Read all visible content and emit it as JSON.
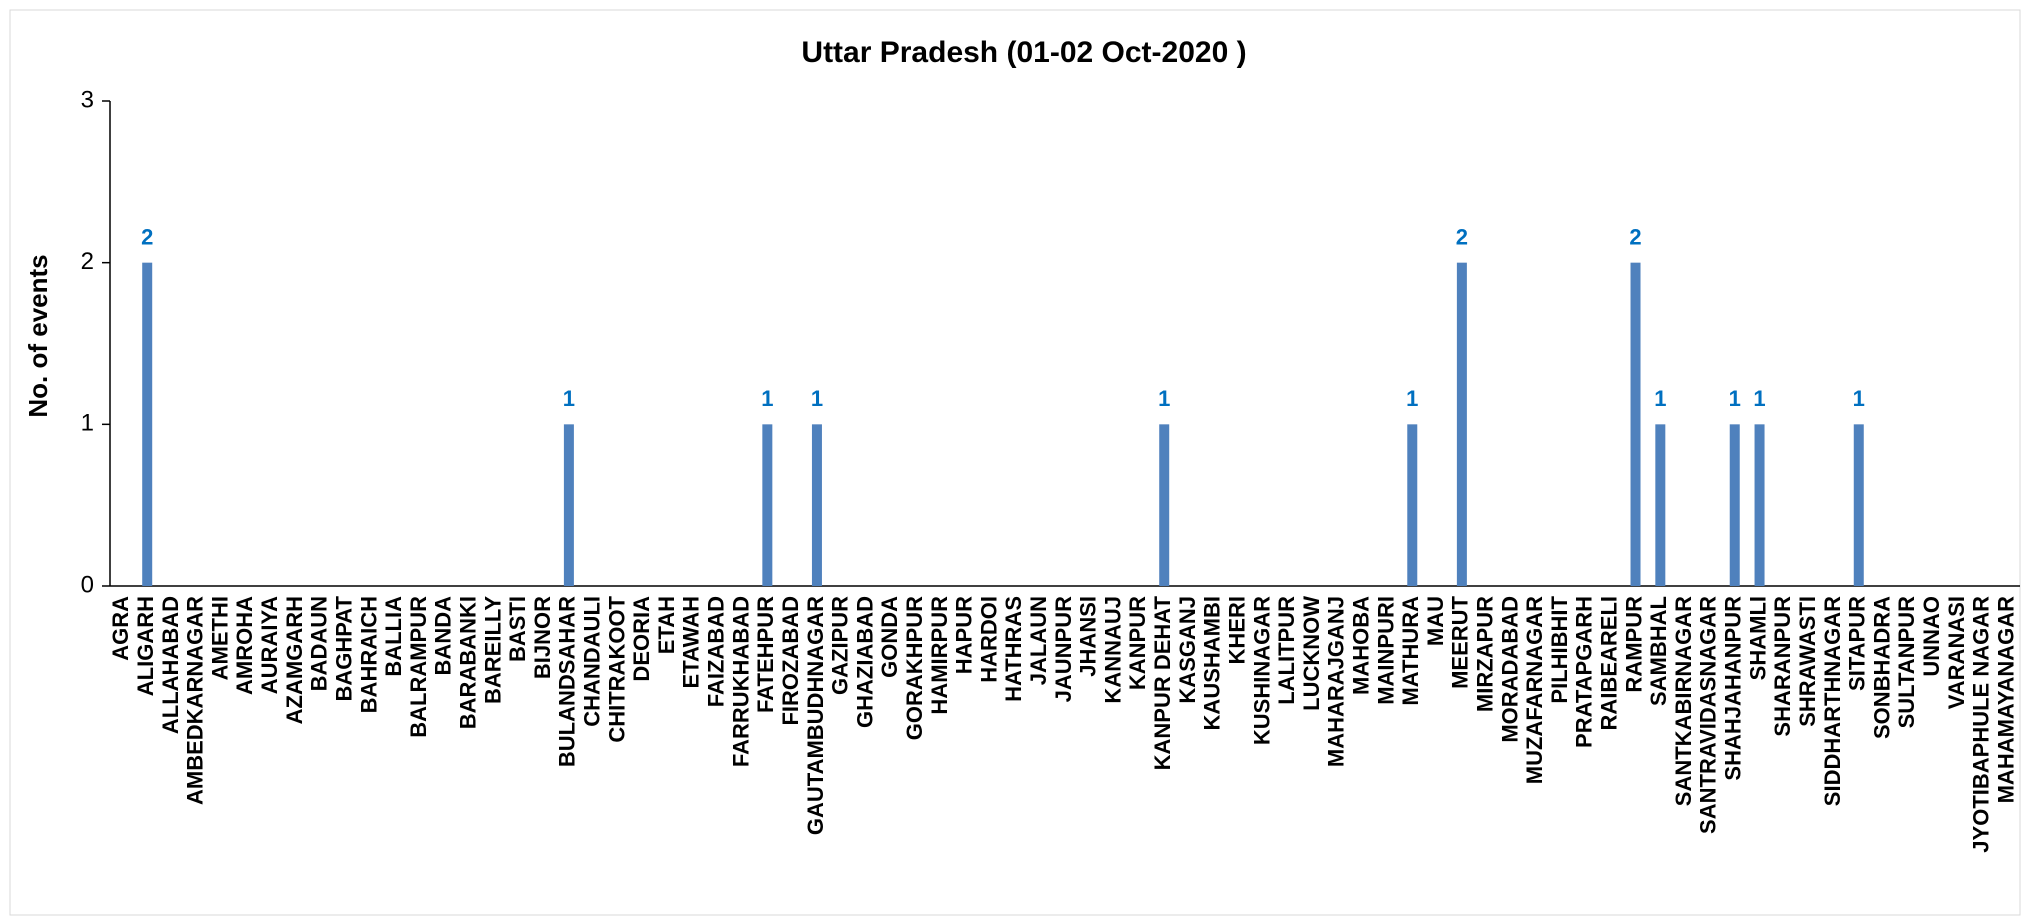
{
  "chart_data": {
    "type": "bar",
    "title": "Uttar Pradesh  (01-02 Oct-2020 )",
    "y_label": "No. of events",
    "categories": [
      "AGRA",
      "ALIGARH",
      "ALLAHABAD",
      "AMBEDKARNAGAR",
      "AMETHI",
      "AMROHA",
      "AURAIYA",
      "AZAMGARH",
      "BADAUN",
      "BAGHPAT",
      "BAHRAICH",
      "BALLIA",
      "BALRAMPUR",
      "BANDA",
      "BARABANKI",
      "BAREILLY",
      "BASTI",
      "BIJNOR",
      "BULANDSAHAR",
      "CHANDAULI",
      "CHITRAKOOT",
      "DEORIA",
      "ETAH",
      "ETAWAH",
      "FAIZABAD",
      "FARRUKHABAD",
      "FATEHPUR",
      "FIROZABAD",
      "GAUTAMBUDHNAGAR",
      "GAZIPUR",
      "GHAZIABAD",
      "GONDA",
      "GORAKHPUR",
      "HAMIRPUR",
      "HAPUR",
      "HARDOI",
      "HATHRAS",
      "JALAUN",
      "JAUNPUR",
      "JHANSI",
      "KANNAUJ",
      "KANPUR",
      "KANPUR DEHAT",
      "KASGANJ",
      "KAUSHAMBI",
      "KHERI",
      "KUSHINAGAR",
      "LALITPUR",
      "LUCKNOW",
      "MAHARAJGANJ",
      "MAHOBA",
      "MAINPURI",
      "MATHURA",
      "MAU",
      "MEERUT",
      "MIRZAPUR",
      "MORADABAD",
      "MUZAFARNAGAR",
      "PILHIBHIT",
      "PRATAPGARH",
      "RAIBEARELI",
      "RAMPUR",
      "SAMBHAL",
      "SANTKABIRNAGAR",
      "SANTRAVIDASNAGAR",
      "SHAHJAHANPUR",
      "SHAMLI",
      "SHARANPUR",
      "SHRAWASTI",
      "SIDDHARTHNAGAR",
      "SITAPUR",
      "SONBHADRA",
      "SULTANPUR",
      "UNNAO",
      "VARANASI",
      "JYOTIBAPHULE NAGAR",
      "MAHAMAYANAGAR"
    ],
    "values": [
      0,
      2,
      0,
      0,
      0,
      0,
      0,
      0,
      0,
      0,
      0,
      0,
      0,
      0,
      0,
      0,
      0,
      0,
      1,
      0,
      0,
      0,
      0,
      0,
      0,
      0,
      1,
      0,
      1,
      0,
      0,
      0,
      0,
      0,
      0,
      0,
      0,
      0,
      0,
      0,
      0,
      0,
      1,
      0,
      0,
      0,
      0,
      0,
      0,
      0,
      0,
      0,
      1,
      0,
      2,
      0,
      0,
      0,
      0,
      0,
      0,
      2,
      1,
      0,
      0,
      1,
      1,
      0,
      0,
      0,
      1,
      0,
      0,
      0,
      0,
      0,
      0
    ],
    "color": "#4f81bd",
    "label_color": "#0070c0",
    "ylim": [
      0,
      3
    ],
    "yticks": [
      0,
      1,
      2,
      3
    ]
  }
}
